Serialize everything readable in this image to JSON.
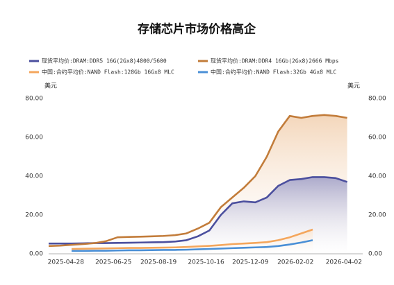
{
  "chart_data": {
    "type": "line",
    "title": "存储芯片市场价格高企",
    "y_unit": "美元",
    "y2_unit": "美元",
    "xlim": [
      "2025-04-07",
      "2026-04-25"
    ],
    "xticks": [
      "2025-04-28",
      "2025-06-25",
      "2025-08-19",
      "2025-10-16",
      "2025-12-09",
      "2026-02-02",
      "2026-04-02"
    ],
    "ylim": [
      0,
      80
    ],
    "yticks": [
      {
        "value": 0,
        "label": "0.00"
      },
      {
        "value": 20,
        "label": "20.00"
      },
      {
        "value": 40,
        "label": "40.00"
      },
      {
        "value": 60,
        "label": "60.00"
      },
      {
        "value": 80,
        "label": "80.00"
      }
    ],
    "y2lim": [
      0,
      80
    ],
    "y2ticks": [
      {
        "value": 0,
        "label": "0.00"
      },
      {
        "value": 20,
        "label": "20.00"
      },
      {
        "value": 40,
        "label": "40.00"
      },
      {
        "value": 60,
        "label": "60.00"
      },
      {
        "value": 80,
        "label": "80.00"
      }
    ],
    "grid": false,
    "series": [
      {
        "name": "现货平均价:DRAM:DDR5 16G(2Gx8)4800/5600",
        "color": "#4b4f9e",
        "fill": "#8a8cc0",
        "x": [
          "2025-04-07",
          "2025-04-21",
          "2025-05-05",
          "2025-05-19",
          "2025-06-02",
          "2025-06-16",
          "2025-06-30",
          "2025-07-14",
          "2025-07-28",
          "2025-08-11",
          "2025-08-25",
          "2025-09-08",
          "2025-09-22",
          "2025-10-06",
          "2025-10-20",
          "2025-11-03",
          "2025-11-17",
          "2025-12-01",
          "2025-12-15",
          "2025-12-29",
          "2026-01-12",
          "2026-01-26",
          "2026-02-09",
          "2026-02-23",
          "2026-03-09",
          "2026-03-23",
          "2026-04-06"
        ],
        "values": [
          5.3,
          5.3,
          5.3,
          5.4,
          5.5,
          5.5,
          5.6,
          5.7,
          5.8,
          5.9,
          6,
          6.3,
          7,
          9,
          12,
          20,
          26,
          27,
          26.5,
          29,
          35,
          38,
          38.5,
          39.5,
          39.5,
          39,
          37
        ]
      },
      {
        "name": "现货平均价:DRAM:DDR4 16Gb(2Gx8)2666 Mbps",
        "color": "#c27c3a",
        "fill": "#f0c9a4",
        "x": [
          "2025-04-07",
          "2025-04-21",
          "2025-05-05",
          "2025-05-19",
          "2025-06-02",
          "2025-06-16",
          "2025-06-30",
          "2025-07-14",
          "2025-07-28",
          "2025-08-11",
          "2025-08-25",
          "2025-09-08",
          "2025-09-22",
          "2025-10-06",
          "2025-10-20",
          "2025-11-03",
          "2025-11-17",
          "2025-12-01",
          "2025-12-15",
          "2025-12-29",
          "2026-01-12",
          "2026-01-26",
          "2026-02-09",
          "2026-02-23",
          "2026-03-09",
          "2026-03-23",
          "2026-04-06"
        ],
        "values": [
          4,
          4.2,
          4.6,
          5,
          5.5,
          6.5,
          8.5,
          8.7,
          8.8,
          9,
          9.2,
          9.6,
          10.5,
          13,
          16,
          24,
          29,
          34,
          40,
          50,
          63,
          71,
          70,
          71,
          71.5,
          71,
          70
        ]
      },
      {
        "name": "中国:合约平均价:NAND Flash:128Gb 16Gx8 MLC",
        "color": "#f4a65c",
        "fill": "#fbe3cc",
        "x": [
          "2025-05-05",
          "2025-05-19",
          "2025-06-02",
          "2025-06-16",
          "2025-06-30",
          "2025-07-14",
          "2025-07-28",
          "2025-08-11",
          "2025-08-25",
          "2025-09-08",
          "2025-09-22",
          "2025-10-06",
          "2025-10-20",
          "2025-11-03",
          "2025-11-17",
          "2025-12-01",
          "2025-12-15",
          "2025-12-29",
          "2026-01-12",
          "2026-01-26",
          "2026-02-09",
          "2026-02-23"
        ],
        "values": [
          2.5,
          2.6,
          2.7,
          2.8,
          2.9,
          3,
          3,
          3.1,
          3.2,
          3.3,
          3.5,
          3.8,
          4.1,
          4.5,
          5,
          5.3,
          5.6,
          6,
          7,
          8.5,
          10.5,
          12.5
        ]
      },
      {
        "name": "中国:合约平均价:NAND Flash:32Gb 4Gx8 MLC",
        "color": "#4a8fd6",
        "x": [
          "2025-05-05",
          "2025-05-19",
          "2025-06-02",
          "2025-06-16",
          "2025-06-30",
          "2025-07-14",
          "2025-07-28",
          "2025-08-11",
          "2025-08-25",
          "2025-09-08",
          "2025-09-22",
          "2025-10-06",
          "2025-10-20",
          "2025-11-03",
          "2025-11-17",
          "2025-12-01",
          "2025-12-15",
          "2025-12-29",
          "2026-01-12",
          "2026-01-26",
          "2026-02-09",
          "2026-02-23"
        ],
        "values": [
          1.5,
          1.5,
          1.6,
          1.6,
          1.7,
          1.8,
          1.8,
          1.9,
          2,
          2,
          2.1,
          2.3,
          2.5,
          2.7,
          2.9,
          3.1,
          3.3,
          3.5,
          4,
          4.8,
          5.8,
          7
        ]
      }
    ]
  }
}
